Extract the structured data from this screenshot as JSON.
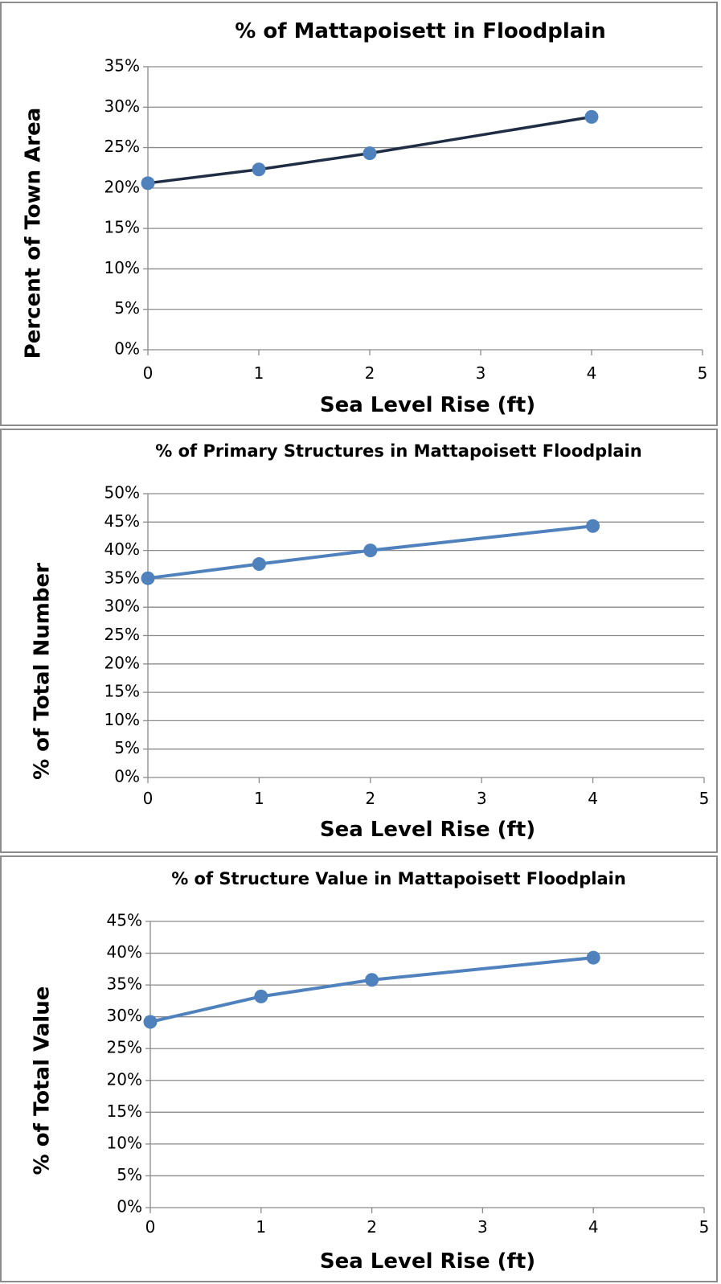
{
  "chart_data": [
    {
      "type": "line",
      "title": "% of Mattapoisett in Floodplain",
      "xlabel": "Sea Level Rise (ft)",
      "ylabel": "Percent of Town Area",
      "x": [
        0,
        1,
        2,
        4
      ],
      "series": [
        {
          "values": [
            20.6,
            22.3,
            24.3,
            28.8
          ]
        }
      ],
      "xlim": [
        0,
        5
      ],
      "ylim": [
        0,
        35
      ],
      "xticks": [
        "0",
        "1",
        "2",
        "3",
        "4",
        "5"
      ],
      "yticks": [
        "0%",
        "5%",
        "10%",
        "15%",
        "20%",
        "25%",
        "30%",
        "35%"
      ],
      "grid": true,
      "line_color": "#1f2d44",
      "marker_color": "#4f81bd"
    },
    {
      "type": "line",
      "title": "% of Primary Structures in Mattapoisett Floodplain",
      "xlabel": "Sea Level Rise (ft)",
      "ylabel": "% of Total Number",
      "x": [
        0,
        1,
        2,
        4
      ],
      "series": [
        {
          "values": [
            35.1,
            37.6,
            40.0,
            44.3
          ]
        }
      ],
      "xlim": [
        0,
        5
      ],
      "ylim": [
        0,
        50
      ],
      "xticks": [
        "0",
        "1",
        "2",
        "3",
        "4",
        "5"
      ],
      "yticks": [
        "0%",
        "5%",
        "10%",
        "15%",
        "20%",
        "25%",
        "30%",
        "35%",
        "40%",
        "45%",
        "50%"
      ],
      "grid": true,
      "line_color": "#4f81bd",
      "marker_color": "#4f81bd"
    },
    {
      "type": "line",
      "title": "% of Structure Value in Mattapoisett Floodplain",
      "xlabel": "Sea Level Rise (ft)",
      "ylabel": "% of Total Value",
      "x": [
        0,
        1,
        2,
        4
      ],
      "series": [
        {
          "values": [
            29.2,
            33.2,
            35.8,
            39.3
          ]
        }
      ],
      "xlim": [
        0,
        5
      ],
      "ylim": [
        0,
        45
      ],
      "xticks": [
        "0",
        "1",
        "2",
        "3",
        "4",
        "5"
      ],
      "yticks": [
        "0%",
        "5%",
        "10%",
        "15%",
        "20%",
        "25%",
        "30%",
        "35%",
        "40%",
        "45%"
      ],
      "grid": true,
      "line_color": "#4f81bd",
      "marker_color": "#4f81bd"
    }
  ]
}
